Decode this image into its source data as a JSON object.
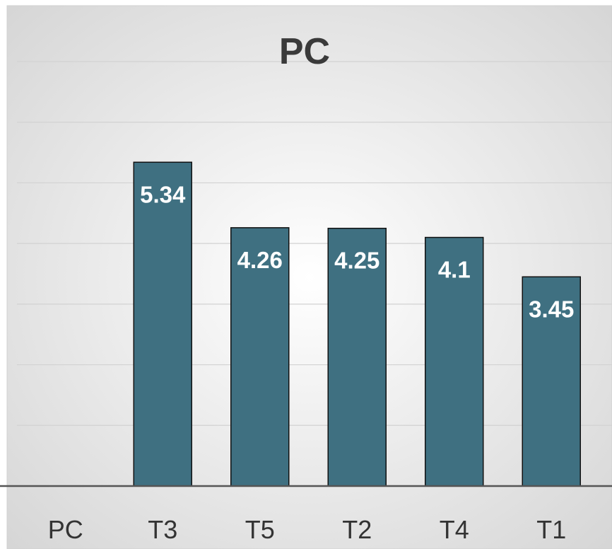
{
  "chart_data": {
    "type": "bar",
    "title": "PC",
    "categories": [
      "PC",
      "T3",
      "T5",
      "T2",
      "T4",
      "T1"
    ],
    "values": [
      null,
      5.34,
      4.26,
      4.25,
      4.1,
      3.45
    ],
    "ylim": [
      0,
      7
    ],
    "grid": true,
    "legend": "none",
    "xlabel": "",
    "ylabel": "",
    "colors": {
      "bar_fill": "#3f7081",
      "bar_stroke": "#111111",
      "data_label": "#ffffff",
      "title": "#3a3a3a",
      "tick_label": "#333333",
      "gridline": "#d2d2d2",
      "axis": "#555555"
    }
  }
}
